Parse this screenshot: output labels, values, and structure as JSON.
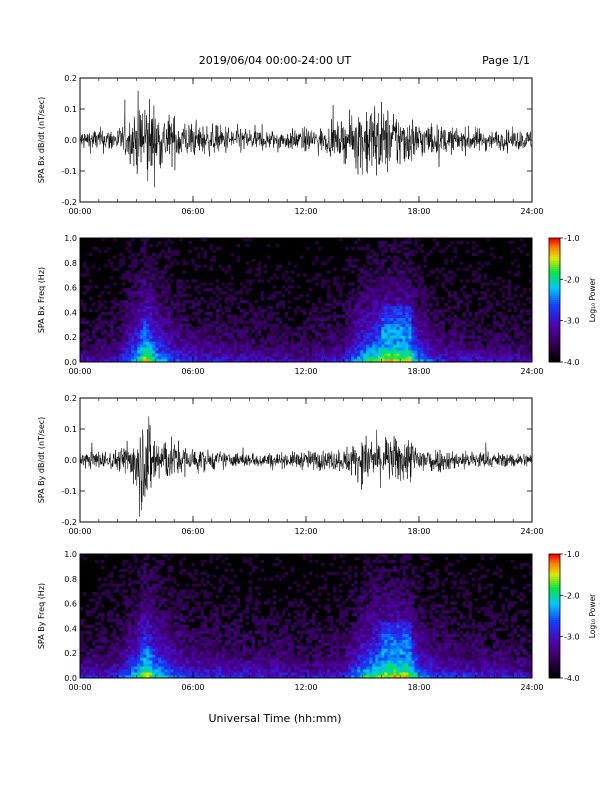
{
  "header": {
    "title": "2019/06/04  00:00-24:00 UT",
    "page": "Page 1/1"
  },
  "footer": {
    "xlabel": "Universal Time (hh:mm)"
  },
  "time_ticks": [
    "00:00",
    "06:00",
    "12:00",
    "18:00",
    "24:00"
  ],
  "colorbar": {
    "ticks": [
      "-1.0",
      "-2.0",
      "-3.0",
      "-4.0"
    ],
    "label": "Log₁₀ Power"
  },
  "chart_data": [
    {
      "type": "line",
      "ylabel": "SPA Bx dB/dt (nT/sec)",
      "xlim": [
        0,
        24
      ],
      "ylim": [
        -0.2,
        0.2
      ],
      "yticks": [
        "0.2",
        "0.1",
        "0.0",
        "-0.1",
        "-0.2"
      ],
      "x_unit": "hours UT",
      "envelope": {
        "x": [
          0,
          1,
          2,
          2.8,
          3.2,
          3.6,
          4.0,
          4.5,
          5,
          6,
          7,
          8,
          9,
          10,
          11,
          12,
          13,
          14,
          14.5,
          15,
          15.5,
          16,
          16.5,
          17,
          17.5,
          18,
          19,
          20,
          21,
          22,
          23,
          24
        ],
        "amplitude": [
          0.04,
          0.05,
          0.05,
          0.1,
          0.2,
          0.2,
          0.13,
          0.11,
          0.1,
          0.07,
          0.06,
          0.06,
          0.05,
          0.04,
          0.04,
          0.05,
          0.05,
          0.08,
          0.1,
          0.15,
          0.17,
          0.15,
          0.13,
          0.12,
          0.1,
          0.08,
          0.06,
          0.05,
          0.05,
          0.04,
          0.04,
          0.04
        ]
      }
    },
    {
      "type": "heatmap",
      "ylabel": "SPA Bx Freq (Hz)",
      "xlim": [
        0,
        24
      ],
      "ylim": [
        0.0,
        1.0
      ],
      "yticks": [
        "1.0",
        "0.8",
        "0.6",
        "0.4",
        "0.2",
        "0.0"
      ],
      "colorscale": {
        "label": "Log₁₀ Power",
        "range": [
          -4.0,
          -1.0
        ]
      },
      "activity": {
        "x": [
          0,
          2,
          3,
          3.5,
          4,
          5,
          6,
          9,
          12,
          14,
          15,
          16,
          16.5,
          17,
          17.5,
          18,
          19,
          21,
          24
        ],
        "level": [
          0.2,
          0.25,
          0.6,
          0.9,
          0.6,
          0.4,
          0.3,
          0.25,
          0.2,
          0.3,
          0.6,
          0.8,
          0.85,
          0.85,
          0.8,
          0.5,
          0.3,
          0.25,
          0.2
        ]
      }
    },
    {
      "type": "line",
      "ylabel": "SPA By dB/dt (nT/sec)",
      "xlim": [
        0,
        24
      ],
      "ylim": [
        -0.2,
        0.2
      ],
      "yticks": [
        "0.2",
        "0.1",
        "0.0",
        "-0.1",
        "-0.2"
      ],
      "x_unit": "hours UT",
      "envelope": {
        "x": [
          0,
          1,
          2,
          2.8,
          3.2,
          3.6,
          4.0,
          4.5,
          5,
          6,
          7,
          8,
          9,
          10,
          11,
          12,
          13,
          14,
          14.5,
          15,
          15.5,
          16,
          16.5,
          17,
          17.5,
          18,
          19,
          20,
          21,
          22,
          23,
          24
        ],
        "amplitude": [
          0.03,
          0.04,
          0.04,
          0.1,
          0.2,
          0.2,
          0.12,
          0.1,
          0.08,
          0.05,
          0.04,
          0.03,
          0.03,
          0.03,
          0.03,
          0.04,
          0.04,
          0.05,
          0.07,
          0.09,
          0.1,
          0.09,
          0.09,
          0.1,
          0.09,
          0.07,
          0.05,
          0.04,
          0.04,
          0.03,
          0.03,
          0.03
        ]
      }
    },
    {
      "type": "heatmap",
      "ylabel": "SPA By Freq (Hz)",
      "xlim": [
        0,
        24
      ],
      "ylim": [
        0.0,
        1.0
      ],
      "yticks": [
        "1.0",
        "0.8",
        "0.6",
        "0.4",
        "0.2",
        "0.0"
      ],
      "colorscale": {
        "label": "Log₁₀ Power",
        "range": [
          -4.0,
          -1.0
        ]
      },
      "activity": {
        "x": [
          0,
          2,
          3,
          3.5,
          4,
          5,
          6,
          9,
          12,
          14,
          15,
          16,
          16.5,
          17,
          17.5,
          18,
          19,
          21,
          24
        ],
        "level": [
          0.25,
          0.3,
          0.6,
          0.9,
          0.65,
          0.45,
          0.35,
          0.3,
          0.25,
          0.3,
          0.6,
          0.8,
          0.85,
          0.85,
          0.8,
          0.5,
          0.35,
          0.3,
          0.25
        ]
      }
    }
  ]
}
